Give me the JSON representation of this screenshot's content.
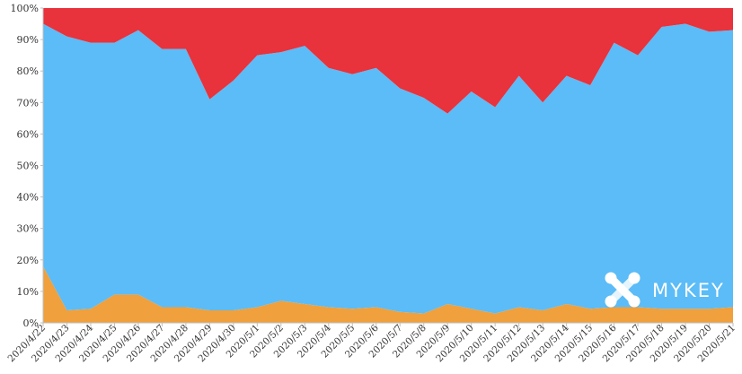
{
  "chart_data": {
    "type": "area",
    "stacked": true,
    "normalized": true,
    "categories": [
      "2020/4/22",
      "2020/4/23",
      "2020/4/24",
      "2020/4/25",
      "2020/4/26",
      "2020/4/27",
      "2020/4/28",
      "2020/4/29",
      "2020/4/30",
      "2020/5/1",
      "2020/5/2",
      "2020/5/3",
      "2020/5/4",
      "2020/5/5",
      "2020/5/6",
      "2020/5/7",
      "2020/5/8",
      "2020/5/9",
      "2020/5/10",
      "2020/5/11",
      "2020/5/12",
      "2020/5/13",
      "2020/5/14",
      "2020/5/15",
      "2020/5/16",
      "2020/5/17",
      "2020/5/18",
      "2020/5/19",
      "2020/5/20",
      "2020/5/21"
    ],
    "series": [
      {
        "color": "#f0a03c",
        "values": [
          18,
          4,
          4.5,
          9,
          9,
          5,
          5,
          4,
          4,
          5,
          7,
          6,
          5,
          4.5,
          5,
          3.5,
          3,
          6,
          4.5,
          3,
          5,
          4,
          6,
          4.5,
          5,
          5,
          4.5,
          4.5,
          4.5,
          5
        ]
      },
      {
        "color": "#5bbcf7",
        "values": [
          77,
          87,
          84.5,
          80,
          84,
          82,
          82,
          67,
          73,
          80,
          79,
          82,
          76,
          74.5,
          76,
          71,
          68.5,
          60.5,
          69,
          65.5,
          73.5,
          66,
          72.5,
          71,
          84,
          80,
          89.5,
          90.5,
          88,
          88
        ]
      },
      {
        "color": "#e8323c",
        "values": [
          5,
          9,
          11,
          11,
          7,
          13,
          13,
          29,
          23,
          15,
          14,
          12,
          19,
          21,
          19,
          25.5,
          28.5,
          33.5,
          26.5,
          31.5,
          21.5,
          30,
          21.5,
          24.5,
          11,
          15,
          6,
          5,
          7.5,
          7
        ]
      }
    ],
    "yticks": [
      "0%",
      "10%",
      "20%",
      "30%",
      "40%",
      "50%",
      "60%",
      "70%",
      "80%",
      "90%",
      "100%"
    ],
    "ylim": [
      0,
      100
    ],
    "grid": false
  },
  "watermark": {
    "text": "MYKEY"
  }
}
